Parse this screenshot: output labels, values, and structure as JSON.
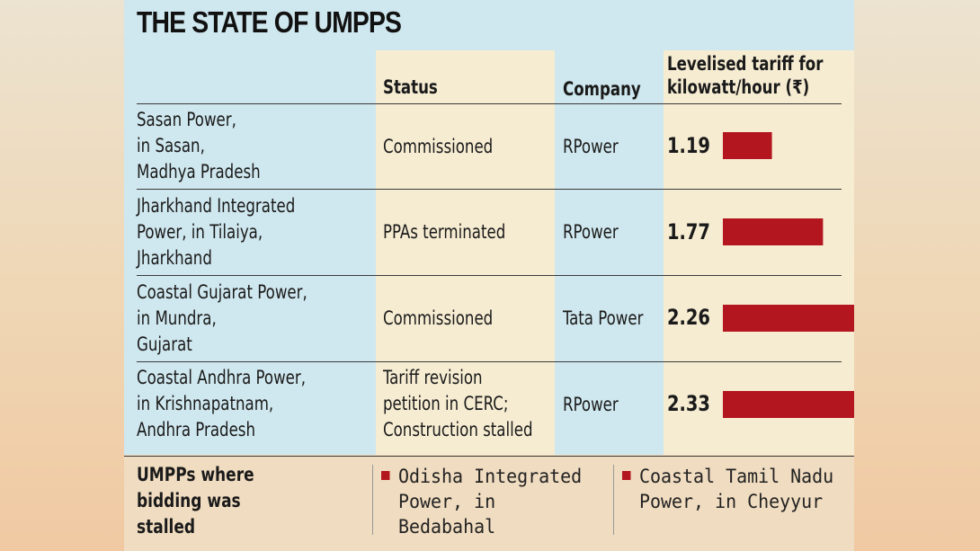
{
  "title": "THE STATE OF UMPPS",
  "headers": {
    "status": "Status",
    "company": "Company",
    "tariff_line1": "Levelised tariff for",
    "tariff_line2": "kilowatt/hour (₹)"
  },
  "rows": [
    {
      "name": [
        "Sasan Power,",
        "in Sasan,",
        "Madhya Pradesh"
      ],
      "status": [
        "Commissioned"
      ],
      "company": "RPower",
      "tariff_label": "1.19"
    },
    {
      "name": [
        "Jharkhand Integrated",
        "Power, in Tilaiya,",
        "Jharkhand"
      ],
      "status": [
        "PPAs terminated"
      ],
      "company": "RPower",
      "tariff_label": "1.77"
    },
    {
      "name": [
        "Coastal Gujarat Power,",
        "in Mundra,",
        "Gujarat"
      ],
      "status": [
        "Commissioned"
      ],
      "company": "Tata Power",
      "tariff_label": "2.26"
    },
    {
      "name": [
        "Coastal Andhra Power,",
        "in Krishnapatnam,",
        "Andhra Pradesh"
      ],
      "status": [
        "Tariff revision",
        "petition in CERC;",
        "Construction stalled"
      ],
      "company": "RPower",
      "tariff_label": "2.33"
    }
  ],
  "footer": {
    "label": [
      "UMPPs where",
      "bidding was",
      "stalled"
    ],
    "items": [
      [
        "Odisha Integrated",
        "Power, in",
        "Bedabahal"
      ],
      [
        "Coastal Tamil Nadu",
        "Power, in Cheyyur"
      ]
    ]
  },
  "colors": {
    "bar": "#b3161f",
    "status_bg": "#f6ecd2",
    "card_bg": "#cfe7ee"
  },
  "chart_data": {
    "type": "bar",
    "orientation": "horizontal",
    "categories": [
      "Sasan Power",
      "Jharkhand Integrated Power",
      "Coastal Gujarat Power",
      "Coastal Andhra Power"
    ],
    "values": [
      1.19,
      1.77,
      2.26,
      2.33
    ],
    "xlim": [
      0,
      2.45
    ],
    "grid": false
  }
}
